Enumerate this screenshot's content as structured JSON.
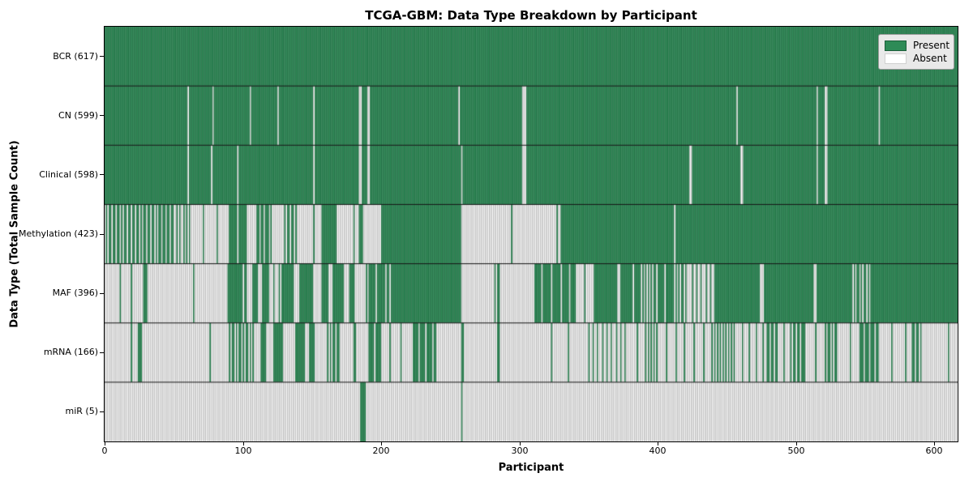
{
  "chart_data": {
    "type": "heatmap",
    "title": "TCGA-GBM: Data Type Breakdown by Participant",
    "xlabel": "Participant",
    "ylabel": "Data Type (Total Sample Count)",
    "n_participants": 617,
    "x_range": [
      0,
      617
    ],
    "xticks": [
      "0",
      "100",
      "200",
      "300",
      "400",
      "500",
      "600"
    ],
    "xtick_values": [
      0,
      100,
      200,
      300,
      400,
      500,
      600
    ],
    "grid": "row-separators-only",
    "legend": {
      "position": "upper right",
      "present_label": "Present",
      "absent_label": "Absent"
    },
    "colors": {
      "present_fill": "#2e8b57",
      "present_edge": "#1c5e3a",
      "absent_fill": "#ffffff",
      "absent_edge": "#8a8a8a",
      "separator": "#141414",
      "border": "#000000",
      "legend_bg": "#e9e9e9"
    },
    "segments_format": "[start_participant, end_participant_exclusive, fraction_present] ; 1=all present, 0=all absent",
    "rows": [
      {
        "name": "BCR",
        "label": "BCR (617)",
        "total": 617,
        "segments": [
          [
            0,
            617,
            1
          ]
        ]
      },
      {
        "name": "CN",
        "label": "CN (599)",
        "total": 599,
        "segments": [
          [
            0,
            60,
            1
          ],
          [
            60,
            61,
            0
          ],
          [
            61,
            78,
            1
          ],
          [
            78,
            79,
            0
          ],
          [
            79,
            105,
            1
          ],
          [
            105,
            106,
            0
          ],
          [
            106,
            125,
            1
          ],
          [
            125,
            126,
            0
          ],
          [
            126,
            151,
            1
          ],
          [
            151,
            152,
            0
          ],
          [
            152,
            184,
            1
          ],
          [
            184,
            186,
            0
          ],
          [
            186,
            190,
            1
          ],
          [
            190,
            192,
            0
          ],
          [
            192,
            256,
            1
          ],
          [
            256,
            257,
            0
          ],
          [
            257,
            302,
            1
          ],
          [
            302,
            305,
            0
          ],
          [
            305,
            457,
            1
          ],
          [
            457,
            458,
            0
          ],
          [
            458,
            515,
            1
          ],
          [
            515,
            516,
            0
          ],
          [
            516,
            521,
            1
          ],
          [
            521,
            523,
            0
          ],
          [
            523,
            560,
            1
          ],
          [
            560,
            561,
            0
          ],
          [
            561,
            617,
            1
          ]
        ]
      },
      {
        "name": "Clinical",
        "label": "Clinical (598)",
        "total": 598,
        "segments": [
          [
            0,
            60,
            1
          ],
          [
            60,
            61,
            0
          ],
          [
            61,
            77,
            1
          ],
          [
            77,
            78,
            0
          ],
          [
            78,
            96,
            1
          ],
          [
            96,
            97,
            0
          ],
          [
            97,
            151,
            1
          ],
          [
            151,
            152,
            0
          ],
          [
            152,
            184,
            1
          ],
          [
            184,
            186,
            0
          ],
          [
            186,
            190,
            1
          ],
          [
            190,
            192,
            0
          ],
          [
            192,
            258,
            1
          ],
          [
            258,
            259,
            0
          ],
          [
            259,
            302,
            1
          ],
          [
            302,
            305,
            0
          ],
          [
            305,
            423,
            1
          ],
          [
            423,
            425,
            0
          ],
          [
            425,
            460,
            1
          ],
          [
            460,
            462,
            0
          ],
          [
            462,
            515,
            1
          ],
          [
            515,
            516,
            0
          ],
          [
            516,
            521,
            1
          ],
          [
            521,
            523,
            0
          ],
          [
            523,
            617,
            1
          ]
        ]
      },
      {
        "name": "Methylation",
        "label": "Methylation (423)",
        "total": 423,
        "segments": [
          [
            0,
            50,
            0.64
          ],
          [
            50,
            62,
            0.42
          ],
          [
            62,
            89,
            0.1
          ],
          [
            89,
            103,
            0.86
          ],
          [
            103,
            109,
            0
          ],
          [
            109,
            121,
            0.7
          ],
          [
            121,
            131,
            0.1
          ],
          [
            131,
            139,
            0.7
          ],
          [
            139,
            157,
            0.08
          ],
          [
            157,
            168,
            1
          ],
          [
            168,
            184,
            0.08
          ],
          [
            184,
            187,
            1
          ],
          [
            187,
            200,
            0
          ],
          [
            200,
            258,
            1
          ],
          [
            258,
            261,
            0
          ],
          [
            261,
            330,
            0.03
          ],
          [
            330,
            412,
            1
          ],
          [
            412,
            413,
            0
          ],
          [
            413,
            617,
            1
          ]
        ]
      },
      {
        "name": "MAF",
        "label": "MAF (396)",
        "total": 396,
        "segments": [
          [
            0,
            11,
            0
          ],
          [
            11,
            12,
            1
          ],
          [
            12,
            19,
            0
          ],
          [
            19,
            20,
            1
          ],
          [
            20,
            28,
            0
          ],
          [
            28,
            31,
            1
          ],
          [
            31,
            89,
            0.03
          ],
          [
            89,
            100,
            1
          ],
          [
            100,
            101,
            0
          ],
          [
            101,
            103,
            1
          ],
          [
            103,
            108,
            0.2
          ],
          [
            108,
            111,
            1
          ],
          [
            111,
            114,
            0
          ],
          [
            114,
            119,
            1
          ],
          [
            119,
            127,
            0.25
          ],
          [
            127,
            137,
            0.9
          ],
          [
            137,
            141,
            0
          ],
          [
            141,
            151,
            1
          ],
          [
            151,
            157,
            0
          ],
          [
            157,
            162,
            1
          ],
          [
            162,
            165,
            0
          ],
          [
            165,
            173,
            1
          ],
          [
            173,
            177,
            0
          ],
          [
            177,
            181,
            1
          ],
          [
            181,
            190,
            0.12
          ],
          [
            190,
            206,
            0.85
          ],
          [
            206,
            207,
            0
          ],
          [
            207,
            258,
            1
          ],
          [
            258,
            284,
            0.04
          ],
          [
            284,
            286,
            1
          ],
          [
            286,
            310,
            0.04
          ],
          [
            310,
            341,
            0.85
          ],
          [
            341,
            354,
            0.15
          ],
          [
            354,
            371,
            1
          ],
          [
            371,
            372,
            0
          ],
          [
            372,
            388,
            0.9
          ],
          [
            388,
            399,
            0.55
          ],
          [
            399,
            414,
            0.85
          ],
          [
            414,
            422,
            0.6
          ],
          [
            422,
            442,
            0.3
          ],
          [
            442,
            474,
            1
          ],
          [
            474,
            478,
            0.25
          ],
          [
            478,
            513,
            1
          ],
          [
            513,
            515,
            0
          ],
          [
            515,
            541,
            1
          ],
          [
            541,
            556,
            0.6
          ],
          [
            556,
            617,
            1
          ]
        ]
      },
      {
        "name": "mRNA",
        "label": "mRNA (166)",
        "total": 166,
        "segments": [
          [
            0,
            23,
            0.05
          ],
          [
            23,
            27,
            0.75
          ],
          [
            27,
            89,
            0.02
          ],
          [
            89,
            108,
            0.6
          ],
          [
            108,
            113,
            0
          ],
          [
            113,
            117,
            1
          ],
          [
            117,
            121,
            0
          ],
          [
            121,
            129,
            0.9
          ],
          [
            129,
            139,
            0.1
          ],
          [
            139,
            145,
            1
          ],
          [
            145,
            148,
            0
          ],
          [
            148,
            152,
            1
          ],
          [
            152,
            159,
            0
          ],
          [
            159,
            164,
            0.4
          ],
          [
            164,
            171,
            0.7
          ],
          [
            171,
            180,
            0
          ],
          [
            180,
            182,
            1
          ],
          [
            182,
            190,
            0
          ],
          [
            190,
            200,
            0.8
          ],
          [
            200,
            207,
            0.15
          ],
          [
            207,
            222,
            0.13
          ],
          [
            222,
            240,
            0.8
          ],
          [
            240,
            258,
            0
          ],
          [
            258,
            260,
            1
          ],
          [
            260,
            284,
            0
          ],
          [
            284,
            286,
            1
          ],
          [
            286,
            311,
            0
          ],
          [
            311,
            347,
            0.08
          ],
          [
            347,
            377,
            0.3
          ],
          [
            377,
            390,
            0.12
          ],
          [
            390,
            400,
            0.5
          ],
          [
            400,
            440,
            0.15
          ],
          [
            440,
            457,
            0.5
          ],
          [
            457,
            478,
            0.2
          ],
          [
            478,
            487,
            0.7
          ],
          [
            487,
            497,
            0.2
          ],
          [
            497,
            508,
            0.7
          ],
          [
            508,
            520,
            0.15
          ],
          [
            520,
            530,
            0.6
          ],
          [
            530,
            545,
            0.1
          ],
          [
            545,
            560,
            0.75
          ],
          [
            560,
            583,
            0.1
          ],
          [
            583,
            591,
            0.7
          ],
          [
            591,
            617,
            0.05
          ]
        ]
      },
      {
        "name": "miR",
        "label": "miR (5)",
        "total": 5,
        "segments": [
          [
            0,
            185,
            0
          ],
          [
            185,
            189,
            1
          ],
          [
            189,
            258,
            0
          ],
          [
            258,
            259,
            1
          ],
          [
            259,
            617,
            0
          ]
        ]
      }
    ]
  }
}
